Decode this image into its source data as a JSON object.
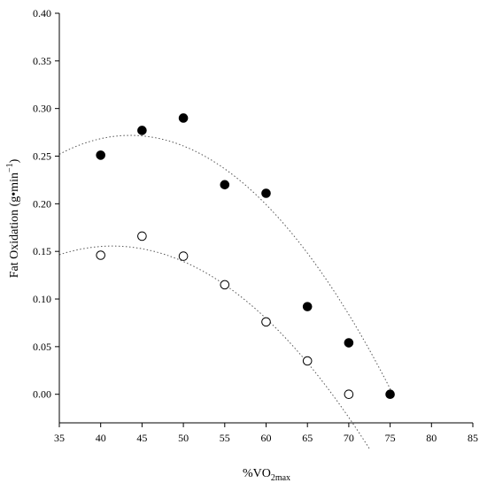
{
  "chart_data": {
    "type": "scatter",
    "xlabel": "%VO",
    "xlabel_sub": "2max",
    "ylabel": "Fat Oxidation (g•min",
    "ylabel_sup": "−1",
    "ylabel_tail": ")",
    "xlim": [
      35,
      85
    ],
    "ylim": [
      -0.03,
      0.4
    ],
    "x_ticks": [
      "35",
      "40",
      "45",
      "50",
      "55",
      "60",
      "65",
      "70",
      "75",
      "80",
      "85"
    ],
    "y_ticks": [
      "0.00",
      "0.05",
      "0.10",
      "0.15",
      "0.20",
      "0.25",
      "0.30",
      "0.35",
      "0.40"
    ],
    "grid": false,
    "series": [
      {
        "marker": "filled-circle",
        "color": "#000000",
        "x": [
          40,
          45,
          50,
          55,
          60,
          65,
          70,
          75
        ],
        "y": [
          0.251,
          0.277,
          0.29,
          0.22,
          0.211,
          0.092,
          0.054,
          0.0
        ],
        "fit": {
          "type": "quadratic",
          "a": -0.0002694,
          "b": 0.02348,
          "c": -0.2398,
          "x_range": [
            35,
            75.2
          ]
        }
      },
      {
        "marker": "open-circle",
        "color": "#000000",
        "x": [
          40,
          45,
          50,
          55,
          60,
          65,
          70
        ],
        "y": [
          0.146,
          0.166,
          0.145,
          0.115,
          0.076,
          0.035,
          0.0
        ],
        "fit": {
          "type": "quadratic",
          "a": -0.0002204,
          "b": 0.01826,
          "c": -0.2226,
          "x_range": [
            35,
            72.5
          ]
        }
      }
    ]
  }
}
